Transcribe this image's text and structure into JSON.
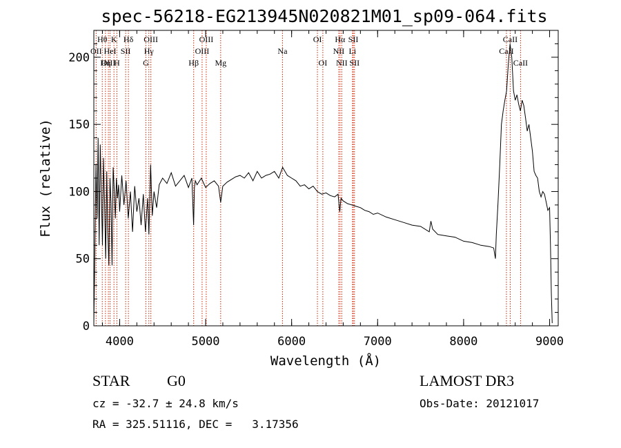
{
  "chart_data": {
    "type": "line",
    "title": "spec-56218-EG213945N020821M01_sp09-064.fits",
    "xlabel": "Wavelength (Å)",
    "ylabel": "Flux (relative)",
    "xlim": [
      3700,
      9100
    ],
    "ylim": [
      0,
      220
    ],
    "x_ticks": [
      4000,
      5000,
      6000,
      7000,
      8000,
      9000
    ],
    "y_ticks": [
      0,
      50,
      100,
      150,
      200
    ],
    "x_tick_labels": [
      "4000",
      "5000",
      "6000",
      "7000",
      "8000",
      "9000"
    ],
    "y_tick_labels": [
      "0",
      "50",
      "100",
      "150",
      "200"
    ],
    "series": [
      {
        "name": "flux",
        "x": [
          3700,
          3712,
          3725,
          3738,
          3750,
          3762,
          3775,
          3788,
          3800,
          3812,
          3825,
          3838,
          3850,
          3862,
          3875,
          3888,
          3900,
          3912,
          3925,
          3938,
          3950,
          3962,
          3975,
          3988,
          4000,
          4025,
          4050,
          4075,
          4100,
          4125,
          4150,
          4175,
          4200,
          4225,
          4250,
          4275,
          4300,
          4325,
          4340,
          4360,
          4380,
          4400,
          4430,
          4460,
          4500,
          4550,
          4600,
          4650,
          4700,
          4750,
          4800,
          4840,
          4860,
          4870,
          4880,
          4900,
          4950,
          5000,
          5050,
          5100,
          5150,
          5175,
          5200,
          5250,
          5300,
          5350,
          5400,
          5450,
          5500,
          5550,
          5600,
          5650,
          5700,
          5750,
          5800,
          5850,
          5895,
          5950,
          6000,
          6050,
          6100,
          6150,
          6200,
          6250,
          6300,
          6350,
          6400,
          6450,
          6500,
          6540,
          6560,
          6575,
          6600,
          6650,
          6700,
          6750,
          6800,
          6850,
          6900,
          6950,
          7000,
          7100,
          7200,
          7300,
          7400,
          7500,
          7600,
          7620,
          7640,
          7700,
          7800,
          7900,
          8000,
          8100,
          8200,
          8300,
          8350,
          8370,
          8380,
          8400,
          8420,
          8440,
          8460,
          8480,
          8500,
          8520,
          8540,
          8560,
          8580,
          8600,
          8620,
          8640,
          8660,
          8680,
          8700,
          8720,
          8740,
          8760,
          8780,
          8800,
          8820,
          8840,
          8860,
          8880,
          8900,
          8920,
          8940,
          8960,
          8980,
          9000,
          9010,
          9020,
          9030
        ],
        "values": [
          2,
          55,
          120,
          80,
          140,
          60,
          135,
          95,
          60,
          125,
          90,
          50,
          115,
          70,
          45,
          110,
          92,
          45,
          118,
          100,
          80,
          110,
          95,
          105,
          85,
          112,
          90,
          108,
          80,
          100,
          70,
          104,
          85,
          95,
          75,
          98,
          70,
          95,
          68,
          120,
          82,
          100,
          88,
          105,
          110,
          106,
          114,
          104,
          108,
          112,
          103,
          110,
          75,
          103,
          108,
          105,
          110,
          103,
          106,
          108,
          104,
          92,
          104,
          107,
          109,
          111,
          112,
          110,
          114,
          108,
          115,
          110,
          112,
          113,
          115,
          110,
          118,
          112,
          110,
          108,
          104,
          105,
          102,
          104,
          100,
          98,
          99,
          97,
          96,
          98,
          85,
          95,
          93,
          91,
          90,
          89,
          88,
          86,
          85,
          83,
          84,
          81,
          79,
          77,
          75,
          74,
          70,
          78,
          72,
          68,
          67,
          66,
          63,
          62,
          60,
          59,
          58,
          50,
          68,
          92,
          120,
          150,
          160,
          168,
          175,
          195,
          210,
          200,
          175,
          168,
          172,
          165,
          160,
          168,
          164,
          155,
          145,
          150,
          140,
          130,
          115,
          112,
          110,
          100,
          96,
          100,
          98,
          92,
          86,
          88,
          60,
          25,
          2
        ]
      }
    ],
    "spectral_lines": [
      {
        "label": "Hθ",
        "x": 3798,
        "row": 0
      },
      {
        "label": "OII",
        "x": 3727,
        "row": 1
      },
      {
        "label": "OIII",
        "x": 3869,
        "row": 2
      },
      {
        "label": "K",
        "x": 3934,
        "row": 0
      },
      {
        "label": "HeI",
        "x": 3889,
        "row": 1
      },
      {
        "label": "Hη",
        "x": 3835,
        "row": 2
      },
      {
        "label": "Hδ",
        "x": 4102,
        "row": 0
      },
      {
        "label": "SII",
        "x": 4070,
        "row": 1
      },
      {
        "label": "H",
        "x": 3968,
        "row": 2
      },
      {
        "label": "OIII",
        "x": 4363,
        "row": 0
      },
      {
        "label": "Hγ",
        "x": 4340,
        "row": 1
      },
      {
        "label": "G",
        "x": 4305,
        "row": 2
      },
      {
        "label": "OIII",
        "x": 5007,
        "row": 0
      },
      {
        "label": "OIII",
        "x": 4959,
        "row": 1
      },
      {
        "label": "Hβ",
        "x": 4861,
        "row": 2
      },
      {
        "label": "Mg",
        "x": 5175,
        "row": 2
      },
      {
        "label": "Na",
        "x": 5894,
        "row": 1
      },
      {
        "label": "OI",
        "x": 6300,
        "row": 0
      },
      {
        "label": "OI",
        "x": 6363,
        "row": 2
      },
      {
        "label": "Hα",
        "x": 6563,
        "row": 0
      },
      {
        "label": "NII",
        "x": 6548,
        "row": 1
      },
      {
        "label": "NII",
        "x": 6583,
        "row": 2
      },
      {
        "label": "SII",
        "x": 6717,
        "row": 0
      },
      {
        "label": "Li",
        "x": 6708,
        "row": 1
      },
      {
        "label": "SII",
        "x": 6731,
        "row": 2
      },
      {
        "label": "CaII",
        "x": 8542,
        "row": 0
      },
      {
        "label": "CaII",
        "x": 8498,
        "row": 1
      },
      {
        "label": "CaII",
        "x": 8662,
        "row": 2
      }
    ]
  },
  "info": {
    "class": "STAR",
    "subclass": "G0",
    "survey": "LAMOST DR3",
    "cz": "cz = -32.7 ± 24.8 km/s",
    "obs_date": "Obs-Date: 20121017",
    "coords": "RA = 325.51116, DEC =   3.17356"
  },
  "colors": {
    "line": "#000000",
    "marker": "#cc2200"
  }
}
